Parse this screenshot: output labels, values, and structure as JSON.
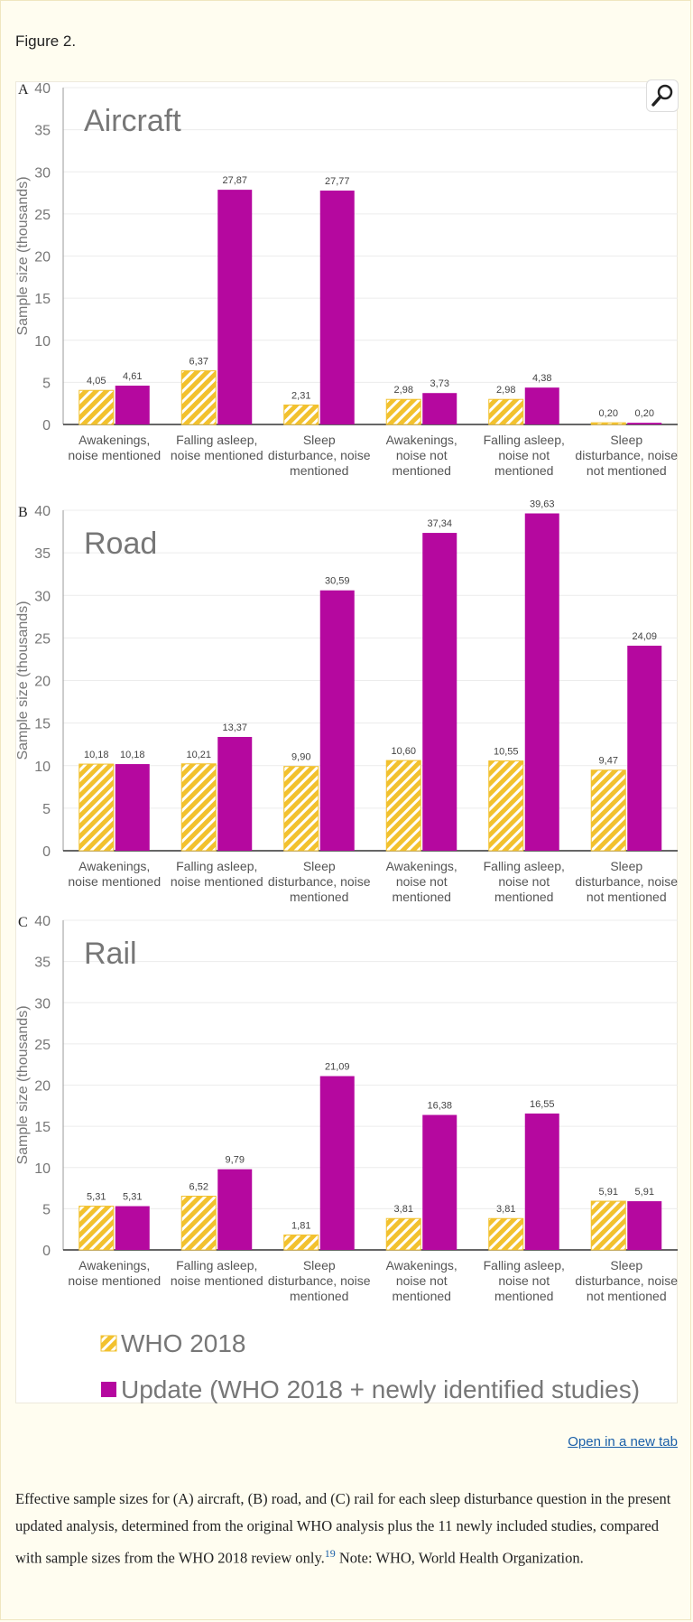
{
  "figure_heading": "Figure 2.",
  "open_new_tab": "Open in a new tab",
  "caption": {
    "text_before": "Effective sample sizes for (A) aircraft, (B) road, and (C) rail for each sleep disturbance question in the present updated analysis, determined from the original WHO analysis plus the 11 newly included studies, compared with sample sizes from the WHO 2018 review only.",
    "ref": "19",
    "text_after": " Note: WHO, World Health Organization."
  },
  "icons": {
    "magnifier": "magnifier-icon"
  },
  "colors": {
    "who2018": "#f2c12e",
    "who2018_hatch": "#ffffff",
    "update": "#b5089f",
    "axis_text": "#777777"
  },
  "legend": [
    {
      "label": "WHO 2018",
      "key": "who2018"
    },
    {
      "label": "Update (WHO 2018 + newly identified studies)",
      "key": "update"
    }
  ],
  "chart_data": [
    {
      "type": "bar",
      "panel": "A",
      "title": "Aircraft",
      "ylabel": "Sample size (thousands)",
      "ylim": [
        0,
        40
      ],
      "yticks": [
        0,
        5,
        10,
        15,
        20,
        25,
        30,
        35,
        40
      ],
      "categories": [
        [
          "Awakenings,",
          "noise mentioned"
        ],
        [
          "Falling asleep,",
          "noise mentioned"
        ],
        [
          "Sleep",
          "disturbance, noise",
          "mentioned"
        ],
        [
          "Awakenings,",
          "noise not",
          "mentioned"
        ],
        [
          "Falling asleep,",
          "noise not",
          "mentioned"
        ],
        [
          "Sleep",
          "disturbance, noise",
          "not mentioned"
        ]
      ],
      "series": [
        {
          "name": "WHO 2018",
          "values": [
            4.05,
            6.37,
            2.31,
            2.98,
            2.98,
            0.2
          ],
          "labels": [
            "4,05",
            "6,37",
            "2,31",
            "2,98",
            "2,98",
            "0,20"
          ]
        },
        {
          "name": "Update (WHO 2018 + newly identified studies)",
          "values": [
            4.61,
            27.87,
            27.77,
            3.73,
            4.38,
            0.2
          ],
          "labels": [
            "4,61",
            "27,87",
            "27,77",
            "3,73",
            "4,38",
            "0,20"
          ]
        }
      ]
    },
    {
      "type": "bar",
      "panel": "B",
      "title": "Road",
      "ylabel": "Sample size (thousands)",
      "ylim": [
        0,
        40
      ],
      "yticks": [
        0,
        5,
        10,
        15,
        20,
        25,
        30,
        35,
        40
      ],
      "categories": [
        [
          "Awakenings,",
          "noise mentioned"
        ],
        [
          "Falling asleep,",
          "noise mentioned"
        ],
        [
          "Sleep",
          "disturbance, noise",
          "mentioned"
        ],
        [
          "Awakenings,",
          "noise not",
          "mentioned"
        ],
        [
          "Falling asleep,",
          "noise not",
          "mentioned"
        ],
        [
          "Sleep",
          "disturbance, noise",
          "not mentioned"
        ]
      ],
      "series": [
        {
          "name": "WHO 2018",
          "values": [
            10.18,
            10.21,
            9.9,
            10.6,
            10.55,
            9.47
          ],
          "labels": [
            "10,18",
            "10,21",
            "9,90",
            "10,60",
            "10,55",
            "9,47"
          ]
        },
        {
          "name": "Update (WHO 2018 + newly identified studies)",
          "values": [
            10.18,
            13.37,
            30.59,
            37.34,
            39.63,
            24.09
          ],
          "labels": [
            "10,18",
            "13,37",
            "30,59",
            "37,34",
            "39,63",
            "24,09"
          ]
        }
      ]
    },
    {
      "type": "bar",
      "panel": "C",
      "title": "Rail",
      "ylabel": "Sample size (thousands)",
      "ylim": [
        0,
        40
      ],
      "yticks": [
        0,
        5,
        10,
        15,
        20,
        25,
        30,
        35,
        40
      ],
      "categories": [
        [
          "Awakenings,",
          "noise mentioned"
        ],
        [
          "Falling asleep,",
          "noise mentioned"
        ],
        [
          "Sleep",
          "disturbance, noise",
          "mentioned"
        ],
        [
          "Awakenings,",
          "noise not",
          "mentioned"
        ],
        [
          "Falling asleep,",
          "noise not",
          "mentioned"
        ],
        [
          "Sleep",
          "disturbance, noise",
          "not mentioned"
        ]
      ],
      "series": [
        {
          "name": "WHO 2018",
          "values": [
            5.31,
            6.52,
            1.81,
            3.81,
            3.81,
            5.91
          ],
          "labels": [
            "5,31",
            "6,52",
            "1,81",
            "3,81",
            "3,81",
            "5,91"
          ]
        },
        {
          "name": "Update (WHO 2018 + newly identified studies)",
          "values": [
            5.31,
            9.79,
            21.09,
            16.38,
            16.55,
            5.91
          ],
          "labels": [
            "5,31",
            "9,79",
            "21,09",
            "16,38",
            "16,55",
            "5,91"
          ]
        }
      ]
    }
  ]
}
